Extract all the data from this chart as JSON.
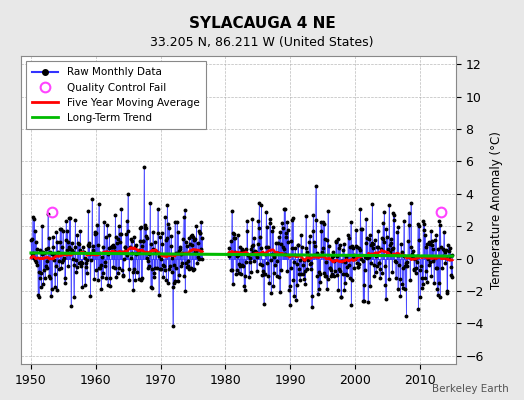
{
  "title": "SYLACAUGA 4 NE",
  "subtitle": "33.205 N, 86.211 W (United States)",
  "ylabel": "Temperature Anomaly (°C)",
  "attribution": "Berkeley Earth",
  "xlim": [
    1948.5,
    2015.5
  ],
  "ylim": [
    -6.5,
    12.5
  ],
  "yticks": [
    -6,
    -4,
    -2,
    0,
    2,
    4,
    6,
    8,
    10,
    12
  ],
  "xticks": [
    1950,
    1960,
    1970,
    1980,
    1990,
    2000,
    2010
  ],
  "start_year": 1950,
  "end_year": 2014,
  "bg_color": "#e8e8e8",
  "plot_bg_color": "#ffffff",
  "raw_line_color": "#3333ff",
  "raw_dot_color": "#000000",
  "ma_color": "#ff0000",
  "trend_color": "#00bb00",
  "qc_color": "#ff44ff",
  "seed": 42,
  "gap_start": 1976.5,
  "gap_end": 1980.5,
  "qc_y": 2.9,
  "qc_x1": 1953.3,
  "qc_x2": 2013.2,
  "trend_slope": -0.003,
  "trend_intercept": 0.35,
  "noise_std": 1.6,
  "figwidth": 5.24,
  "figheight": 4.0,
  "dpi": 100
}
